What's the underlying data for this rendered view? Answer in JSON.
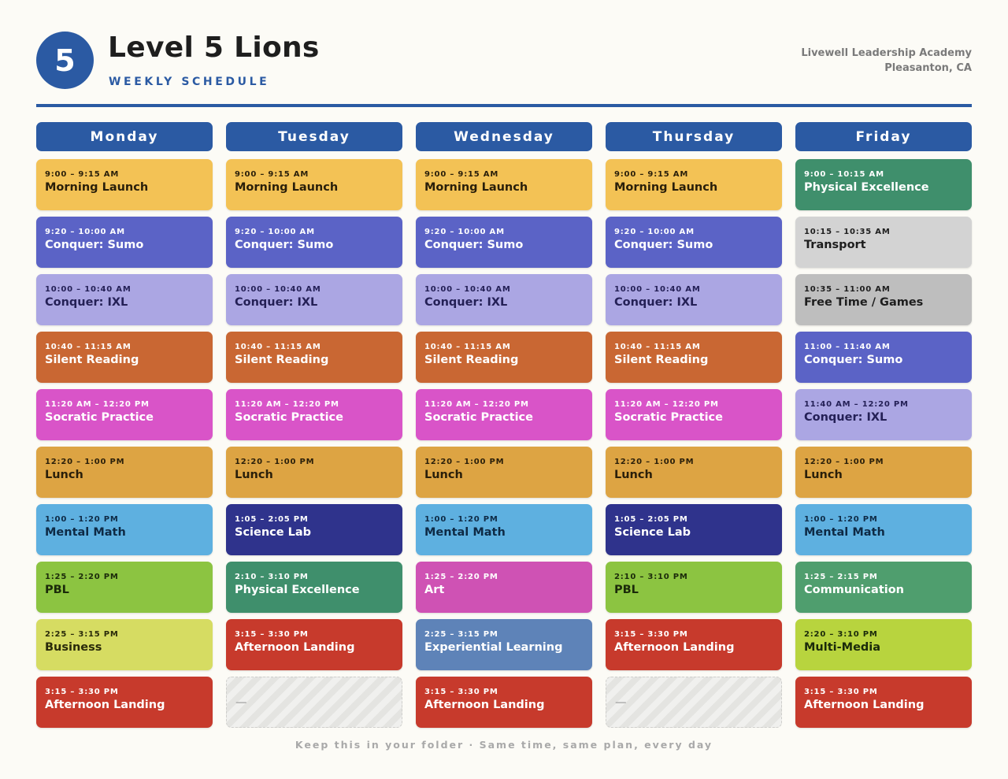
{
  "header": {
    "badge": "5",
    "title": "Level 5 Lions",
    "subtitle": "WEEKLY SCHEDULE",
    "school_name": "Livewell Leadership Academy",
    "school_location": "Pleasanton, CA",
    "brand_color": "#2b5aa3"
  },
  "days": [
    {
      "name": "Monday",
      "blocks": [
        {
          "time": "9:00 – 9:15 AM",
          "name": "Morning Launch",
          "bg": "#f3c255",
          "fg": "#2a1f0a"
        },
        {
          "time": "9:20 – 10:00 AM",
          "name": "Conquer: Sumo",
          "bg": "#5b63c6",
          "fg": "#ffffff"
        },
        {
          "time": "10:00 – 10:40 AM",
          "name": "Conquer: IXL",
          "bg": "#aba6e3",
          "fg": "#242056"
        },
        {
          "time": "10:40 – 11:15 AM",
          "name": "Silent Reading",
          "bg": "#c96733",
          "fg": "#ffffff"
        },
        {
          "time": "11:20 AM – 12:20 PM",
          "name": "Socratic Practice",
          "bg": "#d954c8",
          "fg": "#ffffff"
        },
        {
          "time": "12:20 – 1:00 PM",
          "name": "Lunch",
          "bg": "#dda443",
          "fg": "#2a1f0a"
        },
        {
          "time": "1:00 – 1:20 PM",
          "name": "Mental Math",
          "bg": "#5eb0e0",
          "fg": "#0e2a45"
        },
        {
          "time": "1:25 – 2:20 PM",
          "name": "PBL",
          "bg": "#8cc441",
          "fg": "#1b2a0a"
        },
        {
          "time": "2:25 – 3:15 PM",
          "name": "Business",
          "bg": "#d6dc62",
          "fg": "#2a2a0a"
        },
        {
          "time": "3:15 – 3:30 PM",
          "name": "Afternoon Landing",
          "bg": "#c73a2c",
          "fg": "#ffffff"
        }
      ]
    },
    {
      "name": "Tuesday",
      "blocks": [
        {
          "time": "9:00 – 9:15 AM",
          "name": "Morning Launch",
          "bg": "#f3c255",
          "fg": "#2a1f0a"
        },
        {
          "time": "9:20 – 10:00 AM",
          "name": "Conquer: Sumo",
          "bg": "#5b63c6",
          "fg": "#ffffff"
        },
        {
          "time": "10:00 – 10:40 AM",
          "name": "Conquer: IXL",
          "bg": "#aba6e3",
          "fg": "#242056"
        },
        {
          "time": "10:40 – 11:15 AM",
          "name": "Silent Reading",
          "bg": "#c96733",
          "fg": "#ffffff"
        },
        {
          "time": "11:20 AM – 12:20 PM",
          "name": "Socratic Practice",
          "bg": "#d954c8",
          "fg": "#ffffff"
        },
        {
          "time": "12:20 – 1:00 PM",
          "name": "Lunch",
          "bg": "#dda443",
          "fg": "#2a1f0a"
        },
        {
          "time": "1:05 – 2:05 PM",
          "name": "Science Lab",
          "bg": "#2f338c",
          "fg": "#ffffff"
        },
        {
          "time": "2:10 – 3:10 PM",
          "name": "Physical Excellence",
          "bg": "#3f8f6c",
          "fg": "#ffffff"
        },
        {
          "time": "3:15 – 3:30 PM",
          "name": "Afternoon Landing",
          "bg": "#c73a2c",
          "fg": "#ffffff"
        },
        {
          "time": "",
          "name": "—",
          "empty": true
        }
      ]
    },
    {
      "name": "Wednesday",
      "blocks": [
        {
          "time": "9:00 – 9:15 AM",
          "name": "Morning Launch",
          "bg": "#f3c255",
          "fg": "#2a1f0a"
        },
        {
          "time": "9:20 – 10:00 AM",
          "name": "Conquer: Sumo",
          "bg": "#5b63c6",
          "fg": "#ffffff"
        },
        {
          "time": "10:00 – 10:40 AM",
          "name": "Conquer: IXL",
          "bg": "#aba6e3",
          "fg": "#242056"
        },
        {
          "time": "10:40 – 11:15 AM",
          "name": "Silent Reading",
          "bg": "#c96733",
          "fg": "#ffffff"
        },
        {
          "time": "11:20 AM – 12:20 PM",
          "name": "Socratic Practice",
          "bg": "#d954c8",
          "fg": "#ffffff"
        },
        {
          "time": "12:20 – 1:00 PM",
          "name": "Lunch",
          "bg": "#dda443",
          "fg": "#2a1f0a"
        },
        {
          "time": "1:00 – 1:20 PM",
          "name": "Mental Math",
          "bg": "#5eb0e0",
          "fg": "#0e2a45"
        },
        {
          "time": "1:25 – 2:20 PM",
          "name": "Art",
          "bg": "#cf52b4",
          "fg": "#ffffff"
        },
        {
          "time": "2:25 – 3:15 PM",
          "name": "Experiential Learning",
          "bg": "#5e83b8",
          "fg": "#ffffff"
        },
        {
          "time": "3:15 – 3:30 PM",
          "name": "Afternoon Landing",
          "bg": "#c73a2c",
          "fg": "#ffffff"
        }
      ]
    },
    {
      "name": "Thursday",
      "blocks": [
        {
          "time": "9:00 – 9:15 AM",
          "name": "Morning Launch",
          "bg": "#f3c255",
          "fg": "#2a1f0a"
        },
        {
          "time": "9:20 – 10:00 AM",
          "name": "Conquer: Sumo",
          "bg": "#5b63c6",
          "fg": "#ffffff"
        },
        {
          "time": "10:00 – 10:40 AM",
          "name": "Conquer: IXL",
          "bg": "#aba6e3",
          "fg": "#242056"
        },
        {
          "time": "10:40 – 11:15 AM",
          "name": "Silent Reading",
          "bg": "#c96733",
          "fg": "#ffffff"
        },
        {
          "time": "11:20 AM – 12:20 PM",
          "name": "Socratic Practice",
          "bg": "#d954c8",
          "fg": "#ffffff"
        },
        {
          "time": "12:20 – 1:00 PM",
          "name": "Lunch",
          "bg": "#dda443",
          "fg": "#2a1f0a"
        },
        {
          "time": "1:05 – 2:05 PM",
          "name": "Science Lab",
          "bg": "#2f338c",
          "fg": "#ffffff"
        },
        {
          "time": "2:10 – 3:10 PM",
          "name": "PBL",
          "bg": "#8cc441",
          "fg": "#1b2a0a"
        },
        {
          "time": "3:15 – 3:30 PM",
          "name": "Afternoon Landing",
          "bg": "#c73a2c",
          "fg": "#ffffff"
        },
        {
          "time": "",
          "name": "—",
          "empty": true
        }
      ]
    },
    {
      "name": "Friday",
      "blocks": [
        {
          "time": "9:00 – 10:15 AM",
          "name": "Physical Excellence",
          "bg": "#3f8f6c",
          "fg": "#ffffff"
        },
        {
          "time": "10:15 – 10:35 AM",
          "name": "Transport",
          "bg": "#d3d3d3",
          "fg": "#1e1e1e"
        },
        {
          "time": "10:35 – 11:00 AM",
          "name": "Free Time / Games",
          "bg": "#bebebe",
          "fg": "#1e1e1e"
        },
        {
          "time": "11:00 – 11:40 AM",
          "name": "Conquer: Sumo",
          "bg": "#5b63c6",
          "fg": "#ffffff"
        },
        {
          "time": "11:40 AM – 12:20 PM",
          "name": "Conquer: IXL",
          "bg": "#aba6e3",
          "fg": "#242056"
        },
        {
          "time": "12:20 – 1:00 PM",
          "name": "Lunch",
          "bg": "#dda443",
          "fg": "#2a1f0a"
        },
        {
          "time": "1:00 – 1:20 PM",
          "name": "Mental Math",
          "bg": "#5eb0e0",
          "fg": "#0e2a45"
        },
        {
          "time": "1:25 – 2:15 PM",
          "name": "Communication",
          "bg": "#4f9e6e",
          "fg": "#ffffff"
        },
        {
          "time": "2:20 – 3:10 PM",
          "name": "Multi-Media",
          "bg": "#b8d43e",
          "fg": "#1b2a0a"
        },
        {
          "time": "3:15 – 3:30 PM",
          "name": "Afternoon Landing",
          "bg": "#c73a2c",
          "fg": "#ffffff"
        }
      ]
    }
  ],
  "footer": "Keep this in your folder · Same time, same plan, every day"
}
